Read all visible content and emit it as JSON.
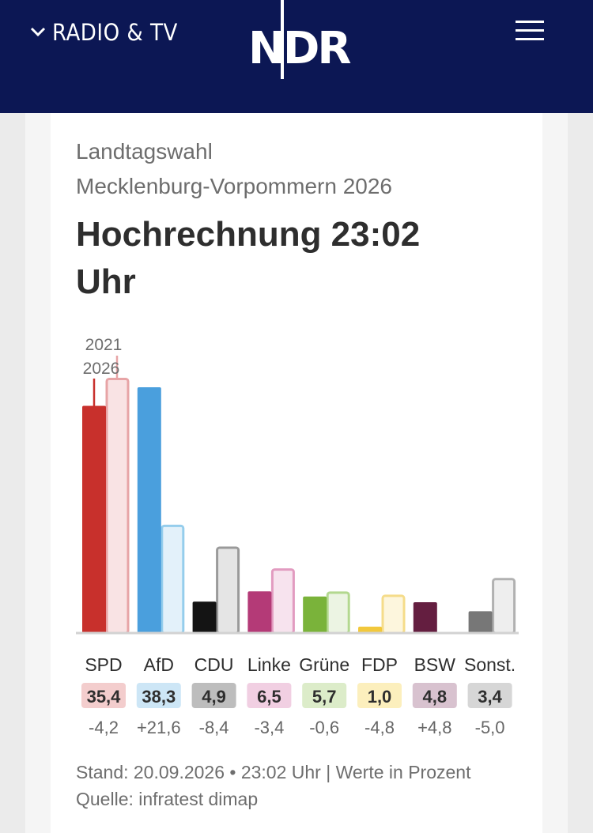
{
  "header": {
    "section_label": "RADIO & TV",
    "logo_text": "NDR",
    "background": "#0c1754"
  },
  "article": {
    "subtitle_line1": "Landtagswahl",
    "subtitle_line2": "Mecklenburg-Vorpommern 2026",
    "title_line1": "Hochrechnung 23:02",
    "title_line2": "Uhr",
    "footer_line1": "Stand: 20.09.2026 • 23:02 Uhr | Werte in Prozent",
    "footer_line2": "Quelle: infratest dimap"
  },
  "chart_data": {
    "type": "bar",
    "legend": {
      "current": "2026",
      "previous": "2021"
    },
    "categories": [
      "SPD",
      "AfD",
      "CDU",
      "Linke",
      "Grüne",
      "FDP",
      "BSW",
      "Sonst."
    ],
    "series": [
      {
        "name": "2026",
        "values": [
          35.4,
          38.3,
          4.9,
          6.5,
          5.7,
          1.0,
          4.8,
          3.4
        ]
      },
      {
        "name": "2021",
        "values": [
          39.6,
          16.7,
          13.3,
          9.9,
          6.3,
          5.8,
          0.0,
          8.4
        ]
      }
    ],
    "value_labels": [
      "35,4",
      "38,3",
      "4,9",
      "6,5",
      "5,7",
      "1,0",
      "4,8",
      "3,4"
    ],
    "change_labels": [
      "-4,2",
      "+21,6",
      "-8,4",
      "-3,4",
      "-0,6",
      "-4,8",
      "+4,8",
      "-5,0"
    ],
    "colors": [
      "#c8302c",
      "#4a9fdd",
      "#141414",
      "#b43a77",
      "#7ab33a",
      "#f2c83c",
      "#641e40",
      "#777777"
    ],
    "previous_fill": [
      "#f9e3e4",
      "#e3f1fa",
      "#e5e5e5",
      "#f7e3ee",
      "#ecf4e3",
      "#fdf6dd",
      "#eddbe4",
      "#eeeeee"
    ],
    "previous_stroke": [
      "#e7a4a6",
      "#95cdec",
      "#9a9a9a",
      "#e29bc0",
      "#b3d88f",
      "#f5dc8a",
      "#a56b8a",
      "#b1b1b1"
    ],
    "badge_bg": [
      "#f3cdcd",
      "#cde6f6",
      "#bdbdbd",
      "#f1cfe2",
      "#dcecc9",
      "#fcefbd",
      "#d8c2cf",
      "#d6d6d6"
    ],
    "ylim": [
      0,
      40
    ],
    "grid": false
  }
}
